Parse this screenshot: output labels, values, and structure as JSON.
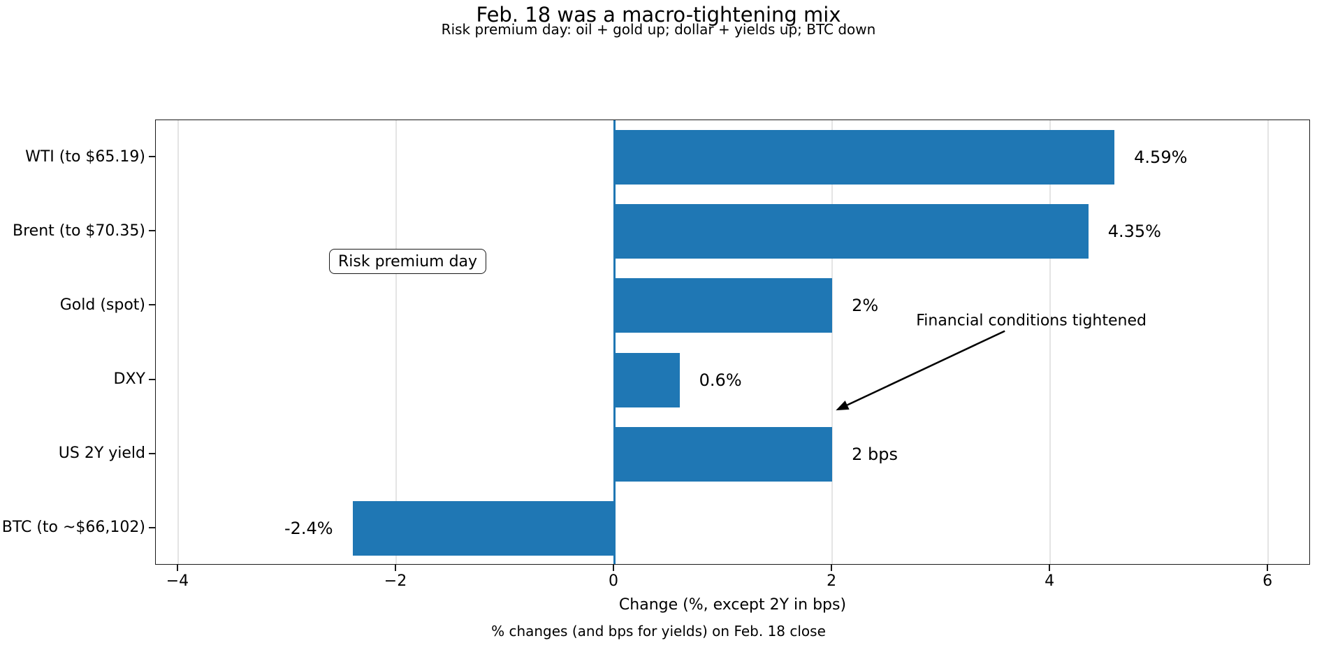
{
  "header": {
    "title": "Feb. 18 was a macro-tightening mix",
    "subtitle": "Risk premium day: oil + gold up; dollar + yields up; BTC down"
  },
  "legend": {
    "label": "Risk premium day"
  },
  "footer": {
    "caption": "% changes (and bps for yields) on Feb. 18 close"
  },
  "colors": {
    "bar": "#1f77b4",
    "zero_line": "#1f77b4",
    "grid": "#e4e4e4",
    "spine": "#1a1a1a"
  },
  "chart_data": {
    "type": "bar",
    "orientation": "horizontal",
    "title": "Feb. 18 was a macro-tightening mix",
    "subtitle": "Risk premium day: oil + gold up; dollar + yields up; BTC down",
    "categories": [
      "WTI (to $65.19)",
      "Brent (to $70.35)",
      "Gold (spot)",
      "DXY",
      "US 2Y yield",
      "BTC (to ~$66,102)"
    ],
    "values": [
      4.59,
      4.35,
      2,
      0.6,
      2,
      -2.4
    ],
    "value_labels": [
      "4.59%",
      "4.35%",
      "2%",
      "0.6%",
      "2 bps",
      "-2.4%"
    ],
    "xlabel": "Change (%, except 2Y in bps)",
    "ylabel": "",
    "xlim": [
      -4.205,
      6.39
    ],
    "xticks": [
      -4,
      -2,
      0,
      2,
      4,
      6
    ],
    "xtick_labels": [
      "−4",
      "−2",
      "0",
      "2",
      "4",
      "6"
    ],
    "grid": true,
    "legend_label": "Risk premium day",
    "legend_position": "upper-left",
    "zero_line": true,
    "bar_color": "#1f77b4",
    "annotation": {
      "text": "Financial conditions tightened",
      "text_x": 2.77,
      "text_row": 2.2,
      "arrow_tail_x": 3.59,
      "arrow_tail_row": 2.35,
      "arrow_tip_x": 2.04,
      "arrow_tip_row": 3.42
    },
    "caption": "% changes (and bps for yields) on Feb. 18 close"
  }
}
